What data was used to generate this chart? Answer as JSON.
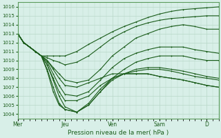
{
  "background_color": "#d8efe8",
  "grid_color": "#b8d8c8",
  "line_color": "#1a5c1a",
  "xlabel": "Pression niveau de la mer( hPa )",
  "ylim": [
    1003.5,
    1016.5
  ],
  "yticks": [
    1004,
    1005,
    1006,
    1007,
    1008,
    1009,
    1010,
    1011,
    1012,
    1013,
    1014,
    1015,
    1016
  ],
  "xtick_labels": [
    "Mer",
    "Jeu",
    "Ven",
    "Sam",
    "D"
  ],
  "xtick_positions": [
    0,
    48,
    96,
    144,
    192
  ],
  "total_hours": 204,
  "series": [
    {
      "x": [
        0,
        6,
        12,
        18,
        24,
        30,
        36,
        42,
        48,
        60,
        72,
        84,
        96,
        108,
        120,
        132,
        144,
        156,
        168,
        180,
        192,
        204
      ],
      "y": [
        1013.0,
        1012.0,
        1011.5,
        1011.0,
        1010.5,
        1010.5,
        1010.5,
        1010.5,
        1010.5,
        1011.0,
        1011.8,
        1012.5,
        1013.2,
        1013.8,
        1014.3,
        1014.8,
        1015.2,
        1015.5,
        1015.7,
        1015.8,
        1015.9,
        1016.0
      ]
    },
    {
      "x": [
        0,
        6,
        12,
        18,
        24,
        30,
        36,
        42,
        48,
        60,
        72,
        84,
        96,
        108,
        120,
        132,
        144,
        156,
        168,
        180,
        192,
        204
      ],
      "y": [
        1013.0,
        1012.0,
        1011.5,
        1011.0,
        1010.5,
        1010.3,
        1010.0,
        1009.8,
        1009.5,
        1009.8,
        1010.5,
        1011.5,
        1012.5,
        1013.2,
        1013.8,
        1014.2,
        1014.5,
        1014.7,
        1014.8,
        1014.9,
        1015.0,
        1015.0
      ]
    },
    {
      "x": [
        0,
        6,
        12,
        18,
        24,
        30,
        36,
        42,
        48,
        60,
        72,
        84,
        96,
        108,
        120,
        132,
        144,
        156,
        168,
        180,
        192,
        204
      ],
      "y": [
        1013.0,
        1012.0,
        1011.5,
        1011.0,
        1010.5,
        1010.0,
        1009.2,
        1008.5,
        1007.8,
        1007.5,
        1007.8,
        1009.0,
        1010.5,
        1011.5,
        1012.5,
        1013.0,
        1013.5,
        1013.8,
        1014.0,
        1013.8,
        1013.5,
        1013.5
      ]
    },
    {
      "x": [
        0,
        6,
        12,
        18,
        24,
        30,
        36,
        42,
        48,
        60,
        72,
        84,
        96,
        108,
        120,
        132,
        144,
        156,
        168,
        180,
        192,
        204
      ],
      "y": [
        1013.0,
        1012.0,
        1011.5,
        1011.0,
        1010.5,
        1009.8,
        1008.5,
        1007.2,
        1006.2,
        1006.0,
        1006.5,
        1007.8,
        1009.2,
        1010.2,
        1010.8,
        1011.2,
        1011.5,
        1011.5,
        1011.5,
        1011.2,
        1011.0,
        1010.8
      ]
    },
    {
      "x": [
        0,
        6,
        12,
        18,
        24,
        30,
        36,
        42,
        48,
        60,
        72,
        84,
        96,
        108,
        120,
        132,
        144,
        156,
        168,
        180,
        192,
        204
      ],
      "y": [
        1013.0,
        1012.0,
        1011.5,
        1011.0,
        1010.5,
        1009.5,
        1007.8,
        1006.0,
        1004.8,
        1004.2,
        1005.0,
        1006.5,
        1008.0,
        1009.0,
        1009.8,
        1010.2,
        1010.5,
        1010.5,
        1010.5,
        1010.2,
        1010.0,
        1010.0
      ]
    },
    {
      "x": [
        0,
        6,
        12,
        18,
        24,
        30,
        36,
        42,
        48,
        60,
        72,
        84,
        96,
        108,
        120,
        132,
        144,
        156,
        168,
        180,
        192,
        204
      ],
      "y": [
        1013.0,
        1012.0,
        1011.5,
        1011.0,
        1010.5,
        1009.0,
        1007.0,
        1005.2,
        1004.5,
        1004.2,
        1005.0,
        1006.5,
        1007.8,
        1008.5,
        1009.0,
        1009.2,
        1009.2,
        1009.0,
        1008.8,
        1008.5,
        1008.2,
        1008.0
      ]
    },
    {
      "x": [
        0,
        6,
        12,
        18,
        24,
        30,
        36,
        42,
        48,
        60,
        72,
        84,
        96,
        108,
        120,
        132,
        144,
        156,
        168,
        180,
        192,
        204
      ],
      "y": [
        1013.0,
        1012.0,
        1011.5,
        1011.0,
        1010.5,
        1008.8,
        1006.5,
        1005.0,
        1004.5,
        1004.2,
        1005.2,
        1006.8,
        1008.0,
        1008.5,
        1008.8,
        1009.0,
        1009.0,
        1008.8,
        1008.5,
        1008.2,
        1008.0,
        1007.8
      ]
    },
    {
      "x": [
        0,
        6,
        12,
        18,
        24,
        30,
        36,
        42,
        48,
        60,
        72,
        84,
        96,
        108,
        120,
        132,
        144,
        156,
        168,
        180,
        192,
        204
      ],
      "y": [
        1013.0,
        1012.0,
        1011.5,
        1011.0,
        1010.5,
        1009.5,
        1008.0,
        1006.5,
        1005.5,
        1005.5,
        1006.0,
        1007.2,
        1008.0,
        1008.5,
        1008.5,
        1008.5,
        1008.2,
        1008.0,
        1007.8,
        1007.5,
        1007.2,
        1007.0
      ]
    },
    {
      "x": [
        0,
        6,
        12,
        18,
        24,
        30,
        36,
        42,
        48,
        60,
        72,
        84,
        96,
        108,
        120,
        132,
        144,
        156,
        168,
        180,
        192,
        204
      ],
      "y": [
        1013.0,
        1012.0,
        1011.5,
        1011.0,
        1010.5,
        1010.0,
        1009.0,
        1008.0,
        1007.2,
        1007.0,
        1007.5,
        1008.0,
        1008.5,
        1008.5,
        1008.5,
        1008.5,
        1008.2,
        1008.0,
        1007.8,
        1007.5,
        1007.2,
        1007.0
      ]
    }
  ],
  "marker": "+"
}
